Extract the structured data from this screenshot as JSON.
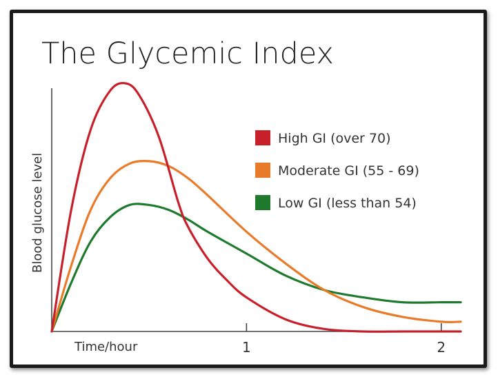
{
  "chart_data": {
    "type": "line",
    "title": "The Glycemic Index",
    "xlabel": "Time/hour",
    "ylabel": "Blood glucose level",
    "xlim": [
      0,
      2.1
    ],
    "ylim": [
      0,
      100
    ],
    "x_ticks": [
      1,
      2
    ],
    "x_tick_labels": [
      "1",
      "2"
    ],
    "y_ticks_shown": false,
    "grid": false,
    "legend_position": "top-right",
    "series": [
      {
        "name": "High GI (over 70)",
        "color": "#c8202a",
        "x": [
          0,
          0.1,
          0.2,
          0.3,
          0.38,
          0.45,
          0.55,
          0.65,
          0.7,
          0.8,
          0.9,
          1.0,
          1.2,
          1.4,
          1.6,
          1.8,
          2.0,
          2.1
        ],
        "y": [
          0,
          50,
          83,
          99,
          102,
          97,
          80,
          53,
          43,
          30,
          21,
          14,
          5,
          1,
          0,
          0,
          0,
          0
        ]
      },
      {
        "name": "Moderate GI (55 - 69)",
        "color": "#e87a2a",
        "x": [
          0,
          0.1,
          0.2,
          0.3,
          0.4,
          0.5,
          0.6,
          0.7,
          0.8,
          1.0,
          1.2,
          1.4,
          1.6,
          1.8,
          2.0,
          2.1
        ],
        "y": [
          0,
          27,
          50,
          63,
          69,
          70,
          68,
          63,
          56,
          41,
          28,
          17,
          10,
          6,
          4,
          4
        ]
      },
      {
        "name": "Low GI (less than 54)",
        "color": "#1f7a2e",
        "x": [
          0,
          0.1,
          0.2,
          0.3,
          0.4,
          0.5,
          0.6,
          0.7,
          0.8,
          1.0,
          1.2,
          1.4,
          1.6,
          1.8,
          2.0,
          2.1
        ],
        "y": [
          0,
          20,
          37,
          47,
          52,
          52,
          50,
          46,
          41,
          32,
          23,
          17,
          14,
          12,
          12,
          12
        ]
      }
    ]
  }
}
